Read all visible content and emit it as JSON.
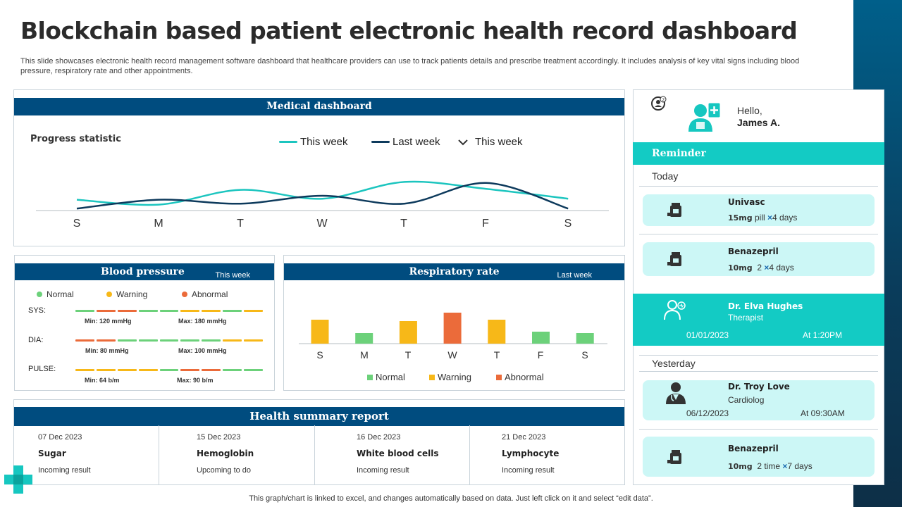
{
  "header": {
    "title": "Blockchain based patient electronic health record dashboard",
    "description": "This slide showcases electronic health record management software dashboard that healthcare providers can use to track patients details and prescribe treatment accordingly. It includes analysis of key vital signs including blood pressure, respiratory rate and other appointments."
  },
  "medical_dashboard": {
    "title": "Medical dashboard",
    "progress_label": "Progress statistic",
    "legend": [
      "This week",
      "Last week",
      "This week"
    ],
    "days": [
      "S",
      "M",
      "T",
      "W",
      "T",
      "F",
      "S"
    ]
  },
  "blood_pressure": {
    "title": "Blood pressure",
    "period": "This week",
    "legend": [
      "Normal",
      "Warning",
      "Abnormal"
    ],
    "rows": [
      {
        "label": "SYS:",
        "min": "Min: 120 mmHg",
        "max": "Max: 180 mmHg",
        "segments": [
          "n",
          "a",
          "a",
          "n",
          "n",
          "w",
          "w",
          "n",
          "w"
        ]
      },
      {
        "label": "DIA:",
        "min": "Min: 80 mmHg",
        "max": "Max: 100 mmHg",
        "segments": [
          "a",
          "a",
          "n",
          "n",
          "n",
          "n",
          "n",
          "w",
          "w"
        ]
      },
      {
        "label": "PULSE:",
        "min": "Min: 64 b/m",
        "max": "Max: 90 b/m",
        "segments": [
          "w",
          "w",
          "w",
          "w",
          "n",
          "a",
          "a",
          "n",
          "n"
        ]
      }
    ]
  },
  "respiratory_rate": {
    "title": "Respiratory rate",
    "period": "Last week",
    "legend": [
      "Normal",
      "Warning",
      "Abnormal"
    ],
    "days": [
      "S",
      "M",
      "T",
      "W",
      "T",
      "F",
      "S"
    ]
  },
  "health_summary": {
    "title": "Health summary report",
    "items": [
      {
        "date": "07 Dec 2023",
        "name": "Sugar",
        "status": "Incoming result"
      },
      {
        "date": "15 Dec 2023",
        "name": "Hemoglobin",
        "status": "Upcoming to do"
      },
      {
        "date": "16 Dec 2023",
        "name": "White blood cells",
        "status": "Incoming result"
      },
      {
        "date": "21 Dec 2023",
        "name": "Lymphocyte",
        "status": "Incoming result"
      }
    ]
  },
  "profile": {
    "greeting": "Hello,",
    "name": "James A."
  },
  "reminder": {
    "title": "Reminder",
    "today_label": "Today",
    "yesterday_label": "Yesterday",
    "med1": {
      "name": "Univasc",
      "dose": "15mg",
      "qty": "pill",
      "days": "4 days"
    },
    "med2": {
      "name": "Benazepril",
      "dose": "10mg",
      "qty": "2",
      "days": "4 days"
    },
    "doctor1": {
      "name": "Dr. Elva Hughes",
      "role": "Therapist",
      "date": "01/01/2023",
      "time": "At 1:20PM"
    },
    "doctor2": {
      "name": "Dr. Troy Love",
      "role": "Cardiolog",
      "date": "06/12/2023",
      "time": "At 09:30AM"
    },
    "med3": {
      "name": "Benazepril",
      "dose": "10mg",
      "qty": "2 time",
      "days": "7 days"
    }
  },
  "footnote": "This graph/chart is linked to excel,  and changes automatically based on data. Just left click on it and select “edit data”.",
  "colors": {
    "navy": "#004c7f",
    "teal": "#13cbc4",
    "normal": "#6cd17a",
    "warning": "#f7b818",
    "abnormal": "#eb6b3a"
  },
  "chart_data": [
    {
      "type": "line",
      "categories": [
        "S",
        "M",
        "T",
        "W",
        "T",
        "F",
        "S"
      ],
      "series": [
        {
          "name": "This week",
          "values": [
            0.55,
            0.3,
            1.05,
            0.6,
            1.45,
            1.1,
            0.6
          ]
        },
        {
          "name": "Last week",
          "values": [
            0.1,
            0.55,
            0.35,
            0.75,
            0.35,
            1.4,
            0.1
          ]
        }
      ],
      "grid": false
    },
    {
      "type": "bar",
      "categories": [
        "S",
        "M",
        "T",
        "W",
        "T",
        "F",
        "S"
      ],
      "values": [
        34,
        15,
        32,
        44,
        34,
        17,
        15
      ],
      "status": [
        "Warning",
        "Normal",
        "Warning",
        "Abnormal",
        "Warning",
        "Normal",
        "Normal"
      ],
      "legend": [
        "Normal",
        "Warning",
        "Abnormal"
      ]
    }
  ]
}
